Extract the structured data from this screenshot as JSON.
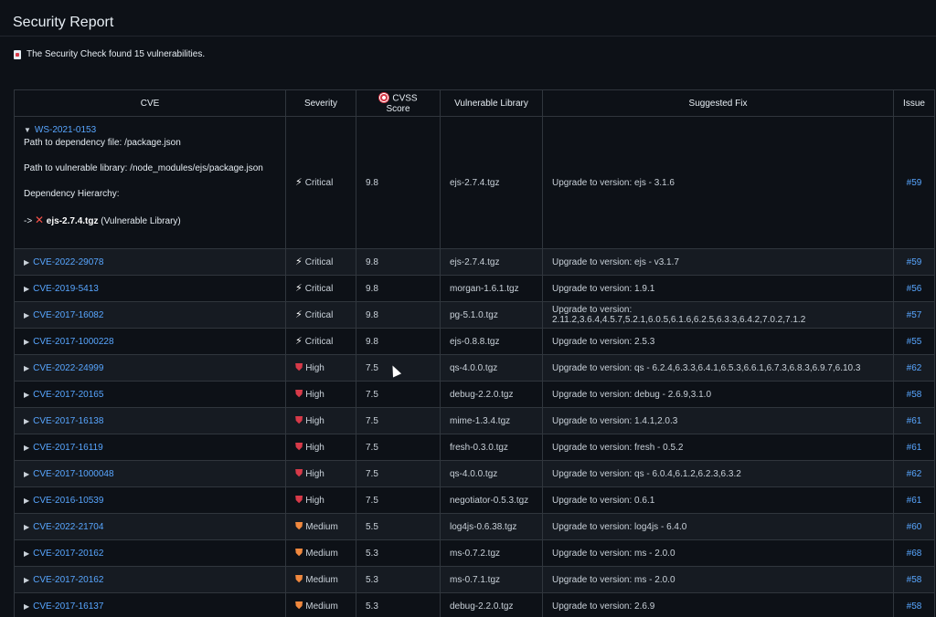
{
  "title": "Security Report",
  "summary": "The Security Check found 15 vulnerabilities.",
  "columns": {
    "cve": "CVE",
    "severity": "Severity",
    "cvss": "CVSS Score",
    "library": "Vulnerable Library",
    "fix": "Suggested Fix",
    "issue": "Issue"
  },
  "expanded": {
    "id": "WS-2021-0153",
    "path_file": "Path to dependency file: /package.json",
    "path_lib": "Path to vulnerable library: /node_modules/ejs/package.json",
    "hierarchy_label": "Dependency Hierarchy:",
    "arrow": "->",
    "lib_name": "ejs-2.7.4.tgz",
    "lib_note": "(Vulnerable Library)",
    "severity": "Critical",
    "cvss": "9.8",
    "library": "ejs-2.7.4.tgz",
    "fix": "Upgrade to version: ejs - 3.1.6",
    "issue": "#59"
  },
  "rows": [
    {
      "cve": "CVE-2022-29078",
      "severity": "Critical",
      "cvss": "9.8",
      "library": "ejs-2.7.4.tgz",
      "fix": "Upgrade to version: ejs - v3.1.7",
      "issue": "#59"
    },
    {
      "cve": "CVE-2019-5413",
      "severity": "Critical",
      "cvss": "9.8",
      "library": "morgan-1.6.1.tgz",
      "fix": "Upgrade to version: 1.9.1",
      "issue": "#56"
    },
    {
      "cve": "CVE-2017-16082",
      "severity": "Critical",
      "cvss": "9.8",
      "library": "pg-5.1.0.tgz",
      "fix": "Upgrade to version: 2.11.2,3.6.4,4.5.7,5.2.1,6.0.5,6.1.6,6.2.5,6.3.3,6.4.2,7.0.2,7.1.2",
      "issue": "#57"
    },
    {
      "cve": "CVE-2017-1000228",
      "severity": "Critical",
      "cvss": "9.8",
      "library": "ejs-0.8.8.tgz",
      "fix": "Upgrade to version: 2.5.3",
      "issue": "#55"
    },
    {
      "cve": "CVE-2022-24999",
      "severity": "High",
      "cvss": "7.5",
      "library": "qs-4.0.0.tgz",
      "fix": "Upgrade to version: qs - 6.2.4,6.3.3,6.4.1,6.5.3,6.6.1,6.7.3,6.8.3,6.9.7,6.10.3",
      "issue": "#62"
    },
    {
      "cve": "CVE-2017-20165",
      "severity": "High",
      "cvss": "7.5",
      "library": "debug-2.2.0.tgz",
      "fix": "Upgrade to version: debug - 2.6.9,3.1.0",
      "issue": "#58"
    },
    {
      "cve": "CVE-2017-16138",
      "severity": "High",
      "cvss": "7.5",
      "library": "mime-1.3.4.tgz",
      "fix": "Upgrade to version: 1.4.1,2.0.3",
      "issue": "#61"
    },
    {
      "cve": "CVE-2017-16119",
      "severity": "High",
      "cvss": "7.5",
      "library": "fresh-0.3.0.tgz",
      "fix": "Upgrade to version: fresh - 0.5.2",
      "issue": "#61"
    },
    {
      "cve": "CVE-2017-1000048",
      "severity": "High",
      "cvss": "7.5",
      "library": "qs-4.0.0.tgz",
      "fix": "Upgrade to version: qs - 6.0.4,6.1.2,6.2.3,6.3.2",
      "issue": "#62"
    },
    {
      "cve": "CVE-2016-10539",
      "severity": "High",
      "cvss": "7.5",
      "library": "negotiator-0.5.3.tgz",
      "fix": "Upgrade to version: 0.6.1",
      "issue": "#61"
    },
    {
      "cve": "CVE-2022-21704",
      "severity": "Medium",
      "cvss": "5.5",
      "library": "log4js-0.6.38.tgz",
      "fix": "Upgrade to version: log4js - 6.4.0",
      "issue": "#60"
    },
    {
      "cve": "CVE-2017-20162",
      "severity": "Medium",
      "cvss": "5.3",
      "library": "ms-0.7.2.tgz",
      "fix": "Upgrade to version: ms - 2.0.0",
      "issue": "#68"
    },
    {
      "cve": "CVE-2017-20162",
      "severity": "Medium",
      "cvss": "5.3",
      "library": "ms-0.7.1.tgz",
      "fix": "Upgrade to version: ms - 2.0.0",
      "issue": "#58"
    },
    {
      "cve": "CVE-2017-16137",
      "severity": "Medium",
      "cvss": "5.3",
      "library": "debug-2.2.0.tgz",
      "fix": "Upgrade to version: 2.6.9",
      "issue": "#58"
    }
  ],
  "icons": {
    "critical": "lightning-icon",
    "high": "shield-icon",
    "medium": "shield-icon",
    "cvss": "target-icon",
    "summary": "document-icon",
    "vulnerable": "x-icon"
  },
  "colors": {
    "link": "#58a6ff",
    "critical": "#ffffff",
    "high": "#d73a49",
    "medium": "#f0883e"
  }
}
